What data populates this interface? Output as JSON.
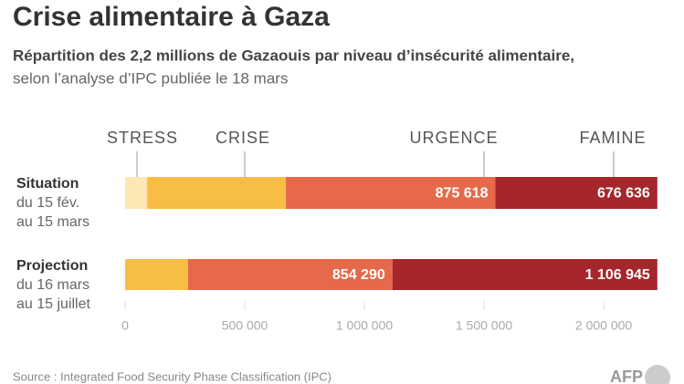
{
  "chart_data": {
    "type": "stacked-barh",
    "title": "Crise alimentaire à Gaza",
    "subtitle": [
      "Répartition des 2,2 millions de Gazaouis par niveau d’insécurité alimentaire,",
      "selon l’analyse d’IPC publiée le 18 mars"
    ],
    "categories": [
      "Situation",
      "Projection"
    ],
    "category_subtitles": [
      [
        "du 15 fév.",
        "au 15 mars"
      ],
      [
        "du 16 mars",
        "au 15 juillet"
      ]
    ],
    "series": [
      {
        "name": "STRESS",
        "color": "#fde7b5",
        "values": [
          92000,
          0
        ]
      },
      {
        "name": "CRISE",
        "color": "#f8bd45",
        "values": [
          580000,
          263000
        ]
      },
      {
        "name": "URGENCE",
        "color": "#e5694a",
        "values": [
          875618,
          854290
        ],
        "value_labels": [
          "875 618",
          "854 290"
        ]
      },
      {
        "name": "FAMINE",
        "color": "#a5262b",
        "values": [
          676636,
          1106945
        ],
        "value_labels": [
          "676 636",
          "1 106 945"
        ]
      }
    ],
    "xlim": [
      0,
      2225000
    ],
    "xticks": [
      0,
      {
        "value": 500000,
        "label": "500 000"
      },
      {
        "value": 1000000,
        "label": "1 000 000"
      },
      {
        "value": 1500000,
        "label": "1 500 000"
      },
      {
        "value": 2000000,
        "label": "2 000 000"
      }
    ],
    "source": "Source : Integrated Food Security Phase Classification (IPC)",
    "logo": "AFP"
  }
}
